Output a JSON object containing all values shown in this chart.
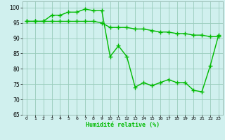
{
  "line1_x": [
    0,
    1,
    2,
    3,
    4,
    5,
    6,
    7,
    8,
    9,
    10,
    11,
    12,
    13,
    14,
    15,
    16,
    17,
    18,
    19,
    20,
    21,
    22,
    23
  ],
  "line1_y": [
    95.5,
    95.5,
    95.5,
    95.5,
    95.5,
    95.5,
    95.5,
    95.5,
    95.5,
    95.0,
    93.5,
    93.5,
    93.5,
    93.0,
    93.0,
    92.5,
    92.0,
    92.0,
    91.5,
    91.5,
    91.0,
    91.0,
    90.5,
    90.5
  ],
  "line2_x": [
    0,
    1,
    2,
    3,
    4,
    5,
    6,
    7,
    8,
    9,
    10,
    11,
    12,
    13,
    14,
    15,
    16,
    17,
    18,
    19,
    20,
    21,
    22,
    23
  ],
  "line2_y": [
    95.5,
    95.5,
    95.5,
    97.5,
    97.5,
    98.5,
    98.5,
    99.5,
    99.0,
    99.0,
    84.0,
    87.5,
    84.0,
    74.0,
    75.5,
    74.5,
    75.5,
    76.5,
    75.5,
    75.5,
    73.0,
    72.5,
    81.0,
    91.0
  ],
  "line_color": "#00bb00",
  "bg_color": "#d0f0ee",
  "grid_color": "#99ccbb",
  "xlabel": "Humidité relative (%)",
  "xlim": [
    -0.5,
    23.5
  ],
  "ylim": [
    65,
    102
  ],
  "yticks": [
    65,
    70,
    75,
    80,
    85,
    90,
    95,
    100
  ],
  "xticks": [
    0,
    1,
    2,
    3,
    4,
    5,
    6,
    7,
    8,
    9,
    10,
    11,
    12,
    13,
    14,
    15,
    16,
    17,
    18,
    19,
    20,
    21,
    22,
    23
  ],
  "marker": "+",
  "markersize": 4,
  "linewidth": 1.0
}
